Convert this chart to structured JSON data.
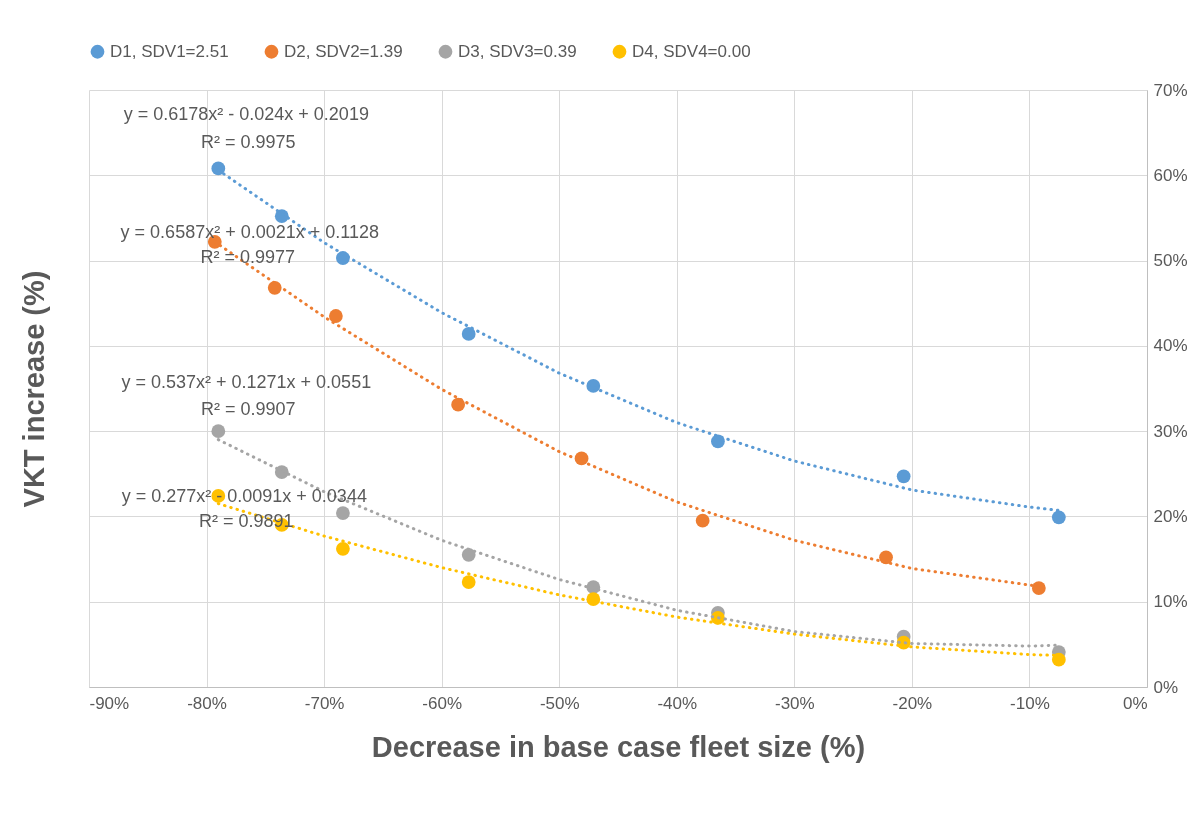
{
  "chart_data": {
    "type": "scatter",
    "xlabel": "Decrease in base case fleet size (%)",
    "ylabel": "VKT increase (%)",
    "xlim": [
      -90,
      0
    ],
    "ylim": [
      0,
      70
    ],
    "xticks": [
      {
        "value": -90,
        "label": "-90%"
      },
      {
        "value": -80,
        "label": "-80%"
      },
      {
        "value": -70,
        "label": "-70%"
      },
      {
        "value": -60,
        "label": "-60%"
      },
      {
        "value": -50,
        "label": "-50%"
      },
      {
        "value": -40,
        "label": "-40%"
      },
      {
        "value": -30,
        "label": "-30%"
      },
      {
        "value": -20,
        "label": "-20%"
      },
      {
        "value": -10,
        "label": "-10%"
      },
      {
        "value": 0,
        "label": "0%"
      }
    ],
    "yticks": [
      {
        "value": 0,
        "label": "0%"
      },
      {
        "value": 10,
        "label": "10%"
      },
      {
        "value": 20,
        "label": "20%"
      },
      {
        "value": 30,
        "label": "30%"
      },
      {
        "value": 40,
        "label": "40%"
      },
      {
        "value": 50,
        "label": "50%"
      },
      {
        "value": 60,
        "label": "60%"
      },
      {
        "value": 70,
        "label": "70%"
      }
    ],
    "grid": true,
    "legend": "top",
    "marker": "circle",
    "line_style": "dotted",
    "series": [
      {
        "name": "D1, SDV1=2.51",
        "color": "#5b9bd5",
        "x": [
          -79.0,
          -73.6,
          -68.4,
          -57.7,
          -47.1,
          -36.5,
          -20.7,
          -7.5
        ],
        "values": [
          60.8,
          55.2,
          50.3,
          41.4,
          35.3,
          28.8,
          24.7,
          19.9
        ]
      },
      {
        "name": "D2, SDV2=1.39",
        "color": "#ed7d31",
        "x": [
          -79.3,
          -74.2,
          -69.0,
          -58.6,
          -48.1,
          -37.8,
          -22.2,
          -9.2
        ],
        "values": [
          52.2,
          46.8,
          43.5,
          33.1,
          26.8,
          19.5,
          15.2,
          11.6
        ]
      },
      {
        "name": "D3, SDV3=0.39",
        "color": "#a5a5a5",
        "x": [
          -79.0,
          -73.6,
          -68.4,
          -57.7,
          -47.1,
          -36.5,
          -20.7,
          -7.5
        ],
        "values": [
          30.0,
          25.2,
          20.4,
          15.5,
          11.7,
          8.7,
          5.9,
          4.1
        ]
      },
      {
        "name": "D4, SDV4=0.00",
        "color": "#ffc000",
        "x": [
          -79.0,
          -73.6,
          -68.4,
          -57.7,
          -47.1,
          -36.5,
          -20.7,
          -7.5
        ],
        "values": [
          22.4,
          19.0,
          16.2,
          12.3,
          10.3,
          8.1,
          5.2,
          3.2
        ]
      },
      {
        "type": "line",
        "marker": "none",
        "color": "#5b9bd5",
        "x": [
          -79,
          -70,
          -60,
          -50,
          -40,
          -30,
          -20,
          -10,
          -7.5
        ],
        "values": [
          60.6,
          52.1,
          43.9,
          36.8,
          31.0,
          26.5,
          23.1,
          21.1,
          20.7
        ]
      },
      {
        "type": "line",
        "marker": "none",
        "color": "#ed7d31",
        "x": [
          -79.3,
          -70,
          -60,
          -50,
          -40,
          -30,
          -20,
          -9.2
        ],
        "values": [
          52.2,
          43.4,
          34.9,
          27.6,
          21.7,
          17.2,
          13.9,
          11.8
        ]
      },
      {
        "type": "line",
        "marker": "none",
        "color": "#a5a5a5",
        "x": [
          -79,
          -70,
          -60,
          -50,
          -40,
          -30,
          -20,
          -10,
          -7.5
        ],
        "values": [
          29.0,
          22.9,
          17.2,
          12.6,
          9.0,
          6.5,
          5.1,
          4.8,
          4.9
        ]
      },
      {
        "type": "line",
        "marker": "none",
        "color": "#ffc000",
        "x": [
          -79,
          -70,
          -60,
          -50,
          -40,
          -30,
          -20,
          -10,
          -7.5
        ],
        "values": [
          21.5,
          17.7,
          14.0,
          10.8,
          8.2,
          6.2,
          4.7,
          3.8,
          3.7
        ]
      }
    ],
    "annotations": [
      "y = 0.6178x² - 0.024x + 0.2019",
      "R² = 0.9975",
      "y = 0.6587x² + 0.0021x + 0.1128",
      "R² = 0.9977",
      "y = 0.537x² + 0.1271x + 0.0551",
      "R² = 0.9907",
      "y = 0.277x² - 0.0091x + 0.0344",
      "R² = 0.9891"
    ]
  }
}
